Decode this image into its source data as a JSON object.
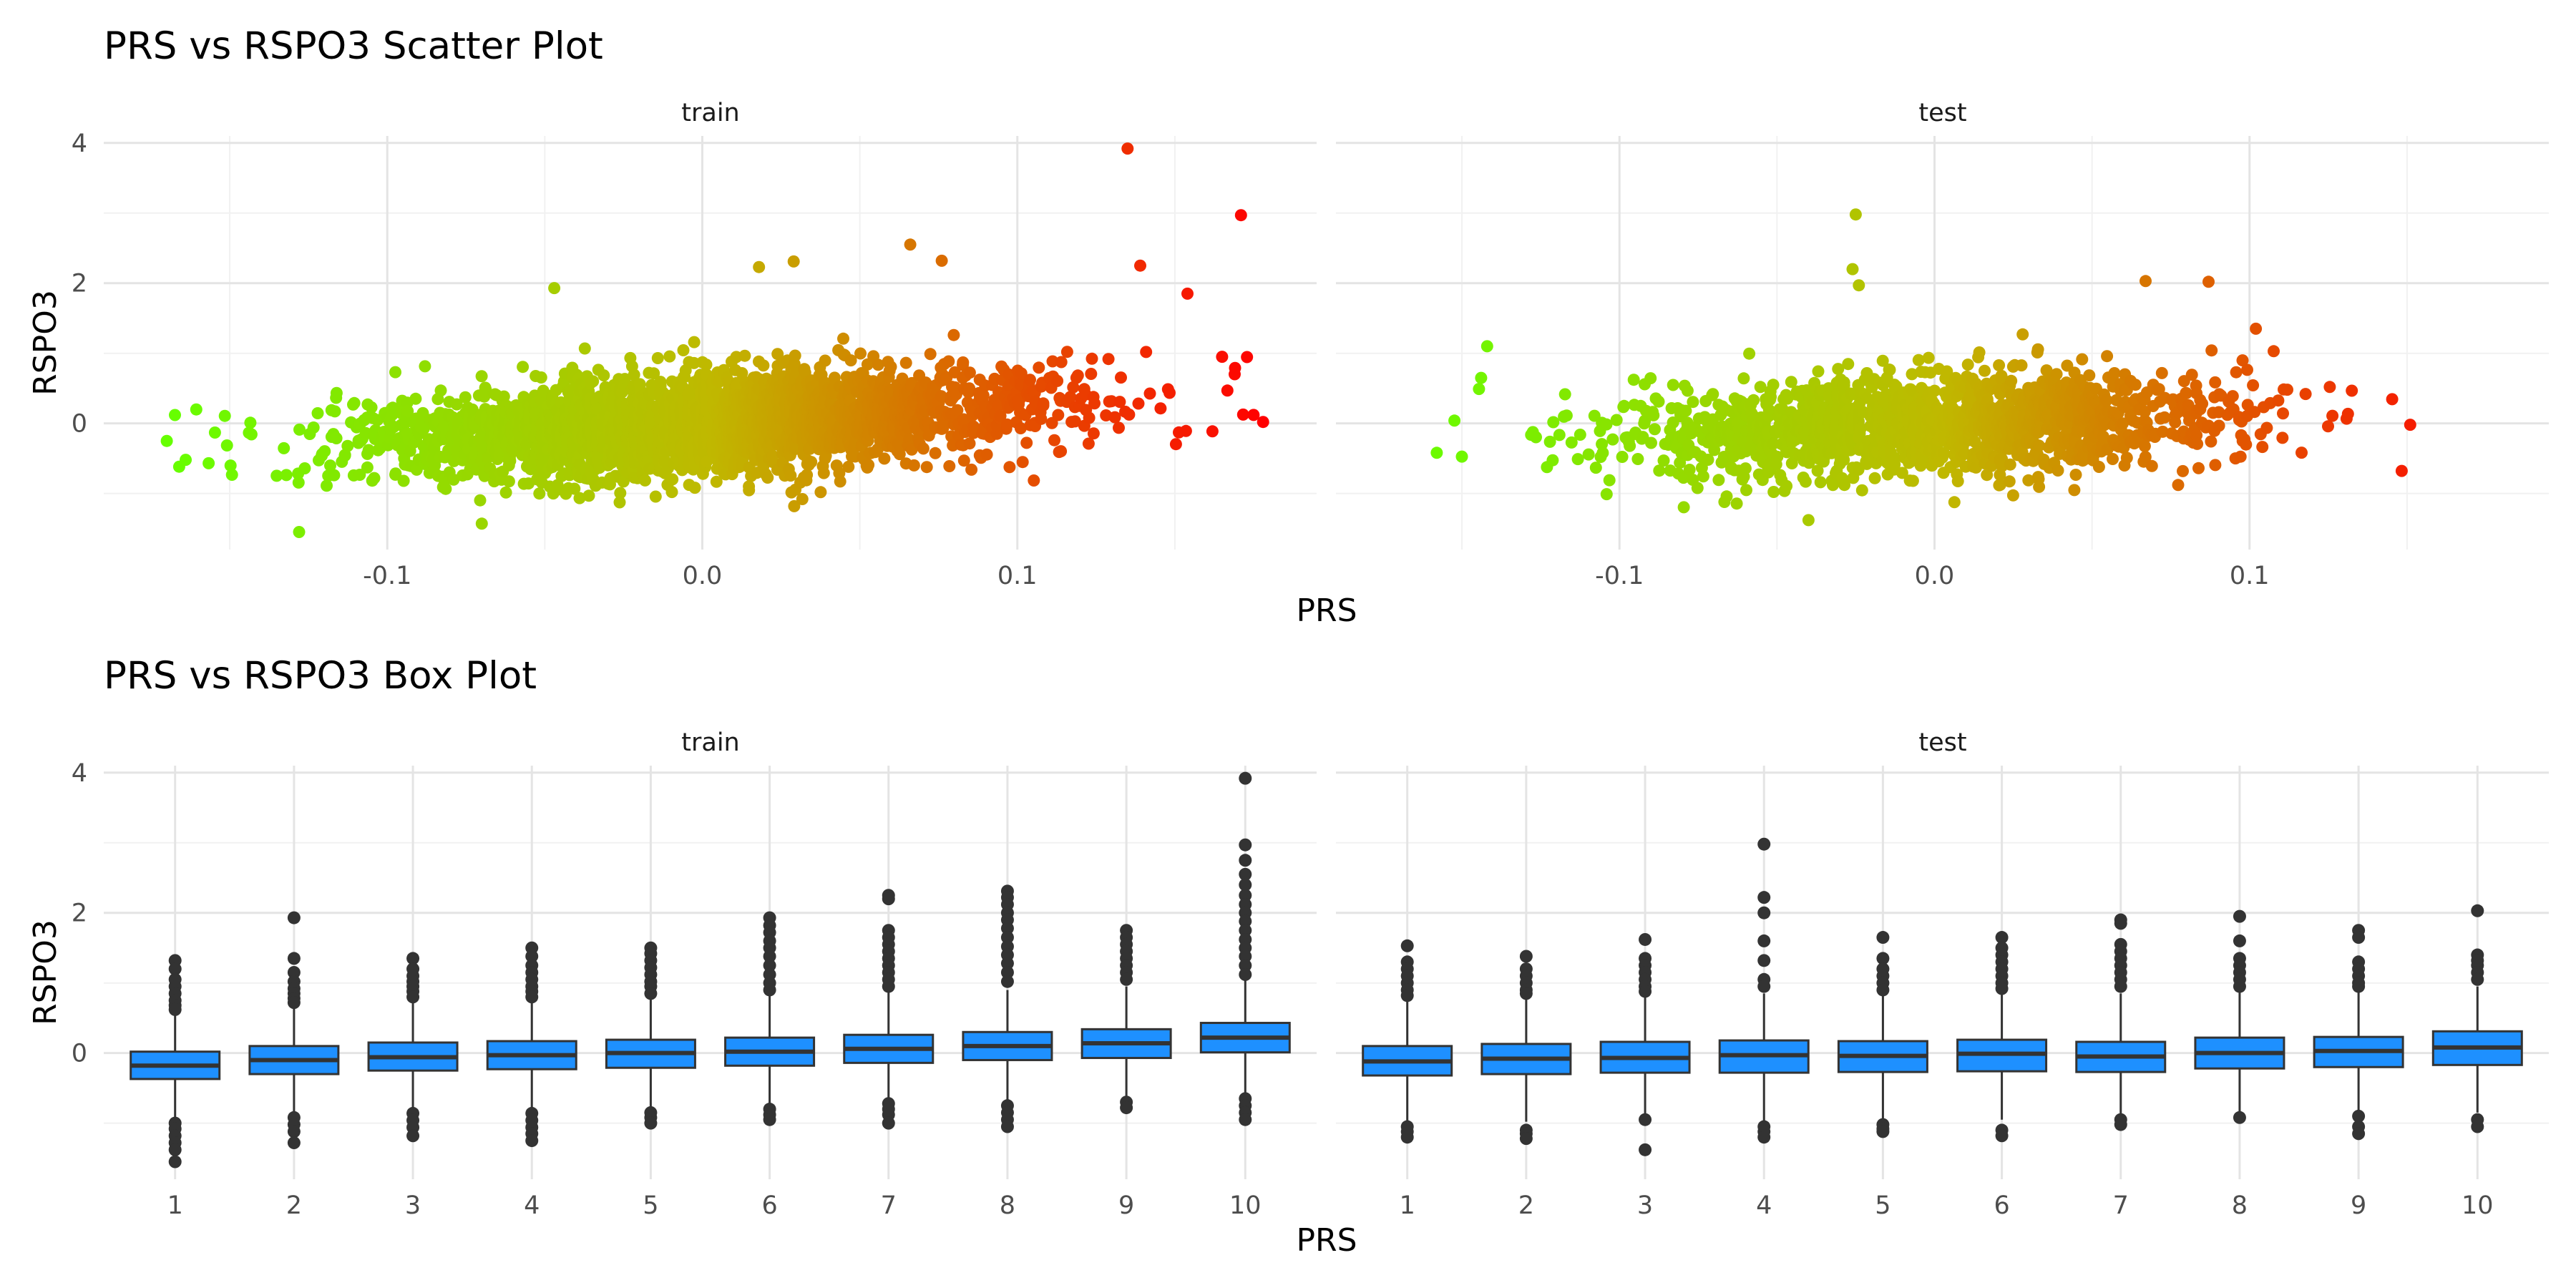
{
  "chart_data": [
    {
      "type": "scatter",
      "title": "PRS vs RSPO3 Scatter Plot",
      "xlabel": "PRS",
      "ylabel": "RSPO3",
      "facets": [
        "train",
        "test"
      ],
      "x_ticks": [
        "-0.1",
        "0.0",
        "0.1"
      ],
      "y_ticks": [
        "0",
        "2",
        "4"
      ],
      "xlim": [
        -0.19,
        0.195
      ],
      "ylim": [
        -1.8,
        4.1
      ],
      "grid": true,
      "color_scale": {
        "low": "#66ff00",
        "mid": "#c0b800",
        "high": "#ff0000",
        "mapped_to": "PRS"
      },
      "panels": [
        {
          "name": "train",
          "n_points": 3000,
          "x_range": [
            -0.17,
            0.178
          ],
          "y_range": [
            -1.55,
            3.92
          ],
          "trend": {
            "intercept": 0.0,
            "slope": 2.6
          },
          "notable_points": [
            {
              "x": 0.135,
              "y": 3.92
            },
            {
              "x": 0.171,
              "y": 2.97
            },
            {
              "x": 0.139,
              "y": 2.25
            },
            {
              "x": 0.154,
              "y": 1.85
            },
            {
              "x": 0.066,
              "y": 2.55
            },
            {
              "x": 0.076,
              "y": 2.32
            },
            {
              "x": 0.029,
              "y": 2.31
            },
            {
              "x": 0.018,
              "y": 2.23
            },
            {
              "x": -0.047,
              "y": 1.93
            },
            {
              "x": -0.17,
              "y": -0.25
            },
            {
              "x": -0.164,
              "y": -0.52
            },
            {
              "x": -0.128,
              "y": -1.55
            },
            {
              "x": -0.07,
              "y": -1.43
            },
            {
              "x": 0.178,
              "y": 0.02
            },
            {
              "x": 0.175,
              "y": 0.12
            },
            {
              "x": 0.165,
              "y": 0.95
            }
          ]
        },
        {
          "name": "test",
          "n_points": 1500,
          "x_range": [
            -0.158,
            0.151
          ],
          "y_range": [
            -1.38,
            2.98
          ],
          "trend": {
            "intercept": 0.0,
            "slope": 1.5
          },
          "notable_points": [
            {
              "x": -0.025,
              "y": 2.98
            },
            {
              "x": -0.026,
              "y": 2.2
            },
            {
              "x": -0.024,
              "y": 1.97
            },
            {
              "x": 0.067,
              "y": 2.03
            },
            {
              "x": 0.087,
              "y": 2.02
            },
            {
              "x": -0.158,
              "y": -0.42
            },
            {
              "x": -0.142,
              "y": 1.1
            },
            {
              "x": -0.04,
              "y": -1.38
            },
            {
              "x": 0.151,
              "y": -0.02
            },
            {
              "x": 0.102,
              "y": 1.35
            }
          ]
        }
      ]
    },
    {
      "type": "box",
      "title": "PRS vs RSPO3 Box Plot",
      "xlabel": "PRS",
      "ylabel": "RSPO3",
      "facets": [
        "train",
        "test"
      ],
      "categories": [
        "1",
        "2",
        "3",
        "4",
        "5",
        "6",
        "7",
        "8",
        "9",
        "10"
      ],
      "y_ticks": [
        "0",
        "2",
        "4"
      ],
      "ylim": [
        -1.8,
        4.1
      ],
      "grid": true,
      "box_fill": "#1e90ff",
      "box_line": "#333333",
      "panels": [
        {
          "name": "train",
          "boxes": [
            {
              "q1": -0.37,
              "median": -0.18,
              "q3": 0.02,
              "low": -0.95,
              "high": 0.55,
              "out_high": [
                1.32,
                1.2,
                1.05,
                0.95,
                0.85,
                0.75,
                0.68,
                0.62
              ],
              "out_low": [
                -1.0,
                -1.08,
                -1.18,
                -1.28,
                -1.38,
                -1.55
              ]
            },
            {
              "q1": -0.3,
              "median": -0.1,
              "q3": 0.1,
              "low": -0.88,
              "high": 0.65,
              "out_high": [
                1.93,
                1.35,
                1.15,
                1.02,
                0.92,
                0.85,
                0.78,
                0.72
              ],
              "out_low": [
                -0.92,
                -1.02,
                -1.12,
                -1.28
              ]
            },
            {
              "q1": -0.25,
              "median": -0.06,
              "q3": 0.15,
              "low": -0.82,
              "high": 0.72,
              "out_high": [
                1.35,
                1.2,
                1.1,
                1.02,
                0.95,
                0.88,
                0.8
              ],
              "out_low": [
                -0.86,
                -0.96,
                -1.06,
                -1.18
              ]
            },
            {
              "q1": -0.23,
              "median": -0.03,
              "q3": 0.17,
              "low": -0.82,
              "high": 0.75,
              "out_high": [
                1.5,
                1.38,
                1.25,
                1.15,
                1.05,
                0.95,
                0.88,
                0.8
              ],
              "out_low": [
                -0.86,
                -0.96,
                -1.06,
                -1.15,
                -1.25
              ]
            },
            {
              "q1": -0.21,
              "median": 0.0,
              "q3": 0.19,
              "low": -0.78,
              "high": 0.78,
              "out_high": [
                1.5,
                1.42,
                1.32,
                1.22,
                1.12,
                1.02,
                0.95,
                0.85
              ],
              "out_low": [
                -0.85,
                -0.92,
                -1.0
              ]
            },
            {
              "q1": -0.18,
              "median": 0.02,
              "q3": 0.22,
              "low": -0.75,
              "high": 0.82,
              "out_high": [
                1.93,
                1.82,
                1.72,
                1.6,
                1.5,
                1.38,
                1.25,
                1.12,
                1.0,
                0.9
              ],
              "out_low": [
                -0.8,
                -0.88,
                -0.95
              ]
            },
            {
              "q1": -0.14,
              "median": 0.06,
              "q3": 0.26,
              "low": -0.7,
              "high": 0.86,
              "out_high": [
                2.25,
                2.2,
                1.75,
                1.65,
                1.55,
                1.45,
                1.35,
                1.25,
                1.15,
                1.05,
                0.95
              ],
              "out_low": [
                -0.72,
                -0.8,
                -0.88,
                -1.0
              ]
            },
            {
              "q1": -0.1,
              "median": 0.1,
              "q3": 0.3,
              "low": -0.72,
              "high": 0.9,
              "out_high": [
                2.31,
                2.22,
                2.12,
                2.0,
                1.9,
                1.78,
                1.65,
                1.52,
                1.4,
                1.28,
                1.15,
                1.02
              ],
              "out_low": [
                -0.75,
                -0.85,
                -0.95,
                -1.05
              ]
            },
            {
              "q1": -0.07,
              "median": 0.14,
              "q3": 0.34,
              "low": -0.65,
              "high": 0.95,
              "out_high": [
                1.75,
                1.65,
                1.55,
                1.45,
                1.35,
                1.25,
                1.15,
                1.05
              ],
              "out_low": [
                -0.7,
                -0.78
              ]
            },
            {
              "q1": 0.01,
              "median": 0.22,
              "q3": 0.43,
              "low": -0.6,
              "high": 1.05,
              "out_high": [
                3.92,
                2.97,
                2.75,
                2.55,
                2.4,
                2.25,
                2.12,
                2.0,
                1.88,
                1.75,
                1.62,
                1.5,
                1.38,
                1.25,
                1.12
              ],
              "out_low": [
                -0.65,
                -0.75,
                -0.85,
                -0.95
              ]
            }
          ]
        },
        {
          "name": "test",
          "boxes": [
            {
              "q1": -0.32,
              "median": -0.12,
              "q3": 0.1,
              "low": -1.0,
              "high": 0.78,
              "out_high": [
                1.53,
                1.3,
                1.2,
                1.1,
                1.0,
                0.9,
                0.82
              ],
              "out_low": [
                -1.05,
                -1.12,
                -1.2
              ]
            },
            {
              "q1": -0.3,
              "median": -0.08,
              "q3": 0.13,
              "low": -0.98,
              "high": 0.8,
              "out_high": [
                1.38,
                1.2,
                1.1,
                1.0,
                0.9,
                0.85
              ],
              "out_low": [
                -1.1,
                -1.15,
                -1.22
              ]
            },
            {
              "q1": -0.28,
              "median": -0.07,
              "q3": 0.16,
              "low": -0.92,
              "high": 0.82,
              "out_high": [
                1.62,
                1.35,
                1.25,
                1.15,
                1.05,
                0.95,
                0.88
              ],
              "out_low": [
                -0.95,
                -1.38
              ]
            },
            {
              "q1": -0.28,
              "median": -0.03,
              "q3": 0.18,
              "low": -1.0,
              "high": 0.85,
              "out_high": [
                2.98,
                2.22,
                2.0,
                1.6,
                1.32,
                1.05,
                0.95
              ],
              "out_low": [
                -1.05,
                -1.12,
                -1.2
              ]
            },
            {
              "q1": -0.27,
              "median": -0.04,
              "q3": 0.17,
              "low": -0.98,
              "high": 0.84,
              "out_high": [
                1.65,
                1.35,
                1.2,
                1.1,
                1.0,
                0.9
              ],
              "out_low": [
                -1.02,
                -1.08,
                -1.12
              ]
            },
            {
              "q1": -0.26,
              "median": -0.01,
              "q3": 0.19,
              "low": -0.95,
              "high": 0.87,
              "out_high": [
                1.65,
                1.5,
                1.4,
                1.3,
                1.2,
                1.1,
                1.0,
                0.92
              ],
              "out_low": [
                -1.1,
                -1.18
              ]
            },
            {
              "q1": -0.27,
              "median": -0.05,
              "q3": 0.16,
              "low": -0.92,
              "high": 0.85,
              "out_high": [
                1.9,
                1.85,
                1.55,
                1.45,
                1.35,
                1.25,
                1.15,
                1.05,
                0.95
              ],
              "out_low": [
                -0.95,
                -1.02
              ]
            },
            {
              "q1": -0.22,
              "median": 0.0,
              "q3": 0.22,
              "low": -0.88,
              "high": 0.9,
              "out_high": [
                1.95,
                1.6,
                1.35,
                1.25,
                1.15,
                1.05,
                0.95
              ],
              "out_low": [
                -0.92
              ]
            },
            {
              "q1": -0.2,
              "median": 0.03,
              "q3": 0.23,
              "low": -0.85,
              "high": 0.9,
              "out_high": [
                1.75,
                1.65,
                1.3,
                1.2,
                1.1,
                1.0,
                0.95
              ],
              "out_low": [
                -0.9,
                -1.05,
                -1.15
              ]
            },
            {
              "q1": -0.17,
              "median": 0.08,
              "q3": 0.31,
              "low": -0.85,
              "high": 0.95,
              "out_high": [
                2.03,
                1.4,
                1.32,
                1.25,
                1.15,
                1.05
              ],
              "out_low": [
                -0.95,
                -1.05
              ]
            }
          ]
        }
      ]
    }
  ]
}
